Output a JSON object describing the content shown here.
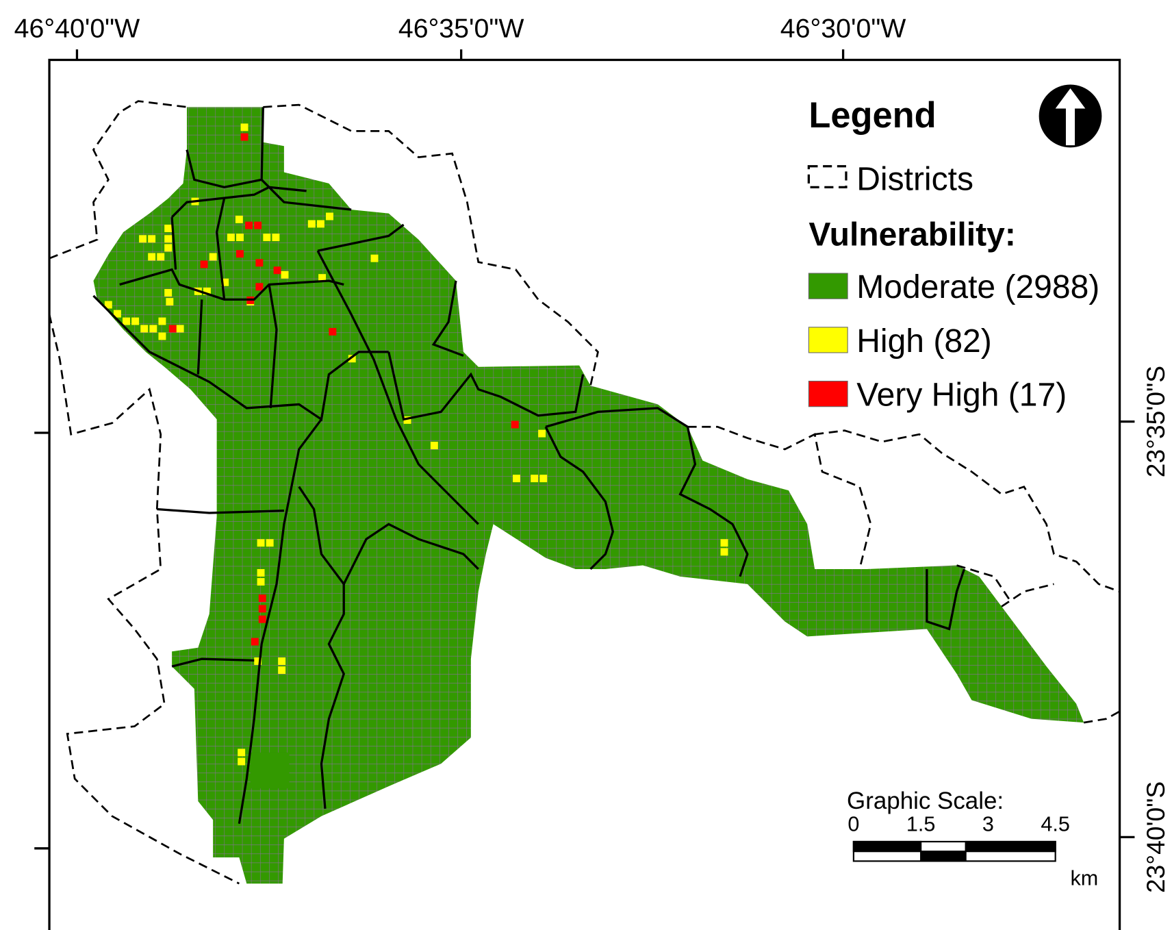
{
  "map": {
    "top_labels": [
      "46°40'0\"W",
      "46°35'0\"W",
      "46°30'0\"W"
    ],
    "right_labels": [
      "23°35'0\"S",
      "23°40'0\"S"
    ],
    "legend": {
      "title": "Legend",
      "districts": "Districts",
      "vulnerability_title": "Vulnerability:",
      "classes": [
        {
          "label": "Moderate (2988)",
          "color": "#339900"
        },
        {
          "label": "High (82)",
          "color": "#ffff00"
        },
        {
          "label": "Very High (17)",
          "color": "#ff0000"
        }
      ]
    },
    "scale": {
      "title": "Graphic Scale:",
      "ticks": [
        "0",
        "1.5",
        "3",
        "4.5"
      ],
      "unit": "km"
    }
  }
}
